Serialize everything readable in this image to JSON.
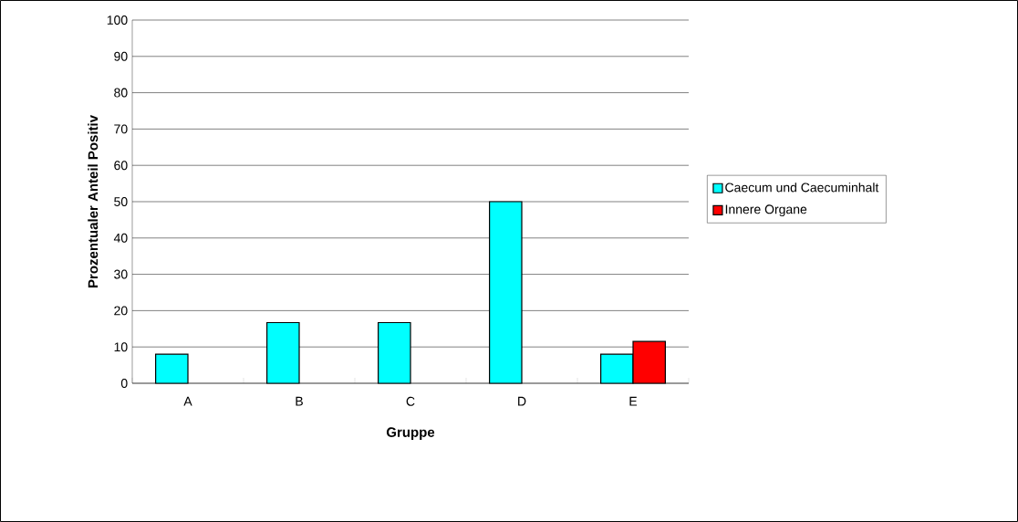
{
  "chart_data": {
    "type": "bar",
    "xlabel": "Gruppe",
    "ylabel": "Prozentualer Anteil Positiv",
    "categories": [
      "A",
      "B",
      "C",
      "D",
      "E"
    ],
    "series": [
      {
        "name": "Caecum und Caecuminhalt",
        "color": "#00ffff",
        "values": [
          8,
          16.7,
          16.7,
          50,
          8
        ]
      },
      {
        "name": "Innere Organe",
        "color": "#ff0000",
        "values": [
          null,
          null,
          null,
          null,
          11.5
        ]
      }
    ],
    "ylim": [
      0,
      100
    ],
    "yticks": [
      0,
      10,
      20,
      30,
      40,
      50,
      60,
      70,
      80,
      90,
      100
    ],
    "grid": "y",
    "legend": "right"
  }
}
